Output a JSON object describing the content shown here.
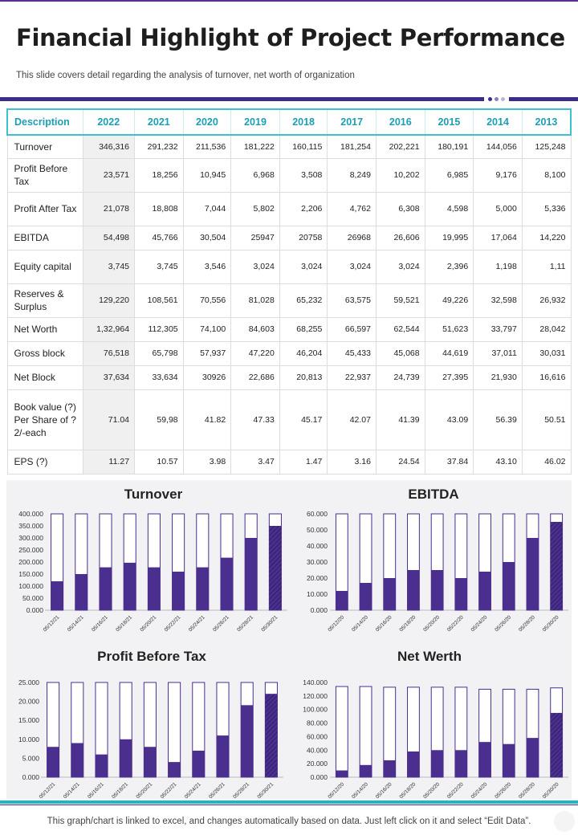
{
  "header": {
    "title": "Financial Highlight of Project Performance",
    "subtitle": "This slide covers detail regarding the analysis of turnover, net worth  of organization"
  },
  "table": {
    "columns": [
      "Description",
      "2022",
      "2021",
      "2020",
      "2019",
      "2018",
      "2017",
      "2016",
      "2015",
      "2014",
      "2013"
    ],
    "rows": [
      {
        "label": "Turnover",
        "values": [
          "346,316",
          "291,232",
          "211,536",
          "181,222",
          "160,115",
          "181,254",
          "202,221",
          "180,191",
          "144,056",
          "125,248"
        ]
      },
      {
        "label": "Profit Before Tax",
        "values": [
          "23,571",
          "18,256",
          "10,945",
          "6,968",
          "3,508",
          "8,249",
          "10,202",
          "6,985",
          "9,176",
          "8,100"
        ]
      },
      {
        "label": "Profit After Tax",
        "values": [
          "21,078",
          "18,808",
          "7,044",
          "5,802",
          "2,206",
          "4,762",
          "6,308",
          "4,598",
          "5,000",
          "5,336"
        ]
      },
      {
        "label": "EBITDA",
        "values": [
          "54,498",
          "45,766",
          "30,504",
          "25947",
          "20758",
          "26968",
          "26,606",
          "19,995",
          "17,064",
          "14,220"
        ]
      },
      {
        "label": "Equity capital",
        "values": [
          "3,745",
          "3,745",
          "3,546",
          "3,024",
          "3,024",
          "3,024",
          "3,024",
          "2,396",
          "1,198",
          "1,11"
        ]
      },
      {
        "label": "Reserves & Surplus",
        "values": [
          "129,220",
          "108,561",
          "70,556",
          "81,028",
          "65,232",
          "63,575",
          "59,521",
          "49,226",
          "32,598",
          "26,932"
        ]
      },
      {
        "label": "Net Worth",
        "values": [
          "1,32,964",
          "112,305",
          "74,100",
          "84,603",
          "68,255",
          "66,597",
          "62,544",
          "51,623",
          "33,797",
          "28,042"
        ]
      },
      {
        "label": "Gross block",
        "values": [
          "76,518",
          "65,798",
          "57,937",
          "47,220",
          "46,204",
          "45,433",
          "45,068",
          "44,619",
          "37,011",
          "30,031"
        ]
      },
      {
        "label": "Net Block",
        "values": [
          "37,634",
          "33,634",
          "30926",
          "22,686",
          "20,813",
          "22,937",
          "24,739",
          "27,395",
          "21,930",
          "16,616"
        ]
      },
      {
        "label": "Book value (?) Per Share of ? 2/-each",
        "values": [
          "71.04",
          "59,98",
          "41.82",
          "47.33",
          "45.17",
          "42.07",
          "41.39",
          "43.09",
          "56.39",
          "50.51"
        ]
      },
      {
        "label": "EPS (?)",
        "values": [
          "11.27",
          "10.57",
          "3.98",
          "3.47",
          "1.47",
          "3.16",
          "24.54",
          "37.84",
          "43.10",
          "46.02"
        ]
      }
    ]
  },
  "chart_data": [
    {
      "type": "bar",
      "title": "Turnover",
      "categories": [
        "05/12/21",
        "05/14/21",
        "05/16/21",
        "05/18/21",
        "05/20/21",
        "05/22/21",
        "05/24/21",
        "05/26/21",
        "05/28/21",
        "05/30/21"
      ],
      "values": [
        120000,
        150000,
        178000,
        197000,
        178000,
        160000,
        178000,
        218000,
        300000,
        350000
      ],
      "totals": [
        400000,
        400000,
        400000,
        400000,
        400000,
        400000,
        400000,
        400000,
        400000,
        400000
      ],
      "ylim": [
        0,
        400000
      ],
      "yticks": [
        "0.000",
        "50.000",
        "100.000",
        "150.000",
        "200.000",
        "250.000",
        "300.000",
        "350.000",
        "400.000"
      ],
      "grid": false
    },
    {
      "type": "bar",
      "title": "EBITDA",
      "categories": [
        "05/12/20",
        "05/14/20",
        "05/16/20",
        "05/18/20",
        "05/20/20",
        "05/22/20",
        "05/24/20",
        "05/26/20",
        "05/28/20",
        "05/30/20"
      ],
      "values": [
        12000,
        17000,
        20000,
        25000,
        25000,
        20000,
        24000,
        30000,
        45000,
        55000
      ],
      "totals": [
        60000,
        60000,
        60000,
        60000,
        60000,
        60000,
        60000,
        60000,
        60000,
        60000
      ],
      "ylim": [
        0,
        60000
      ],
      "yticks": [
        "0.000",
        "10.000",
        "20.000",
        "30.000",
        "40.000",
        "50.000",
        "60.000"
      ],
      "grid": false
    },
    {
      "type": "bar",
      "title": "Profit Before Tax",
      "categories": [
        "05/12/21",
        "05/14/21",
        "05/16/21",
        "05/18/21",
        "05/20/21",
        "05/22/21",
        "05/24/21",
        "05/26/21",
        "05/28/21",
        "05/30/21"
      ],
      "values": [
        8000,
        9000,
        6000,
        10000,
        8000,
        4000,
        7000,
        11000,
        19000,
        22000
      ],
      "totals": [
        25000,
        25000,
        25000,
        25000,
        25000,
        25000,
        25000,
        25000,
        25000,
        25000
      ],
      "ylim": [
        0,
        25000
      ],
      "yticks": [
        "0.000",
        "5.000",
        "10.000",
        "15.000",
        "20.000",
        "25.000"
      ],
      "grid": false
    },
    {
      "type": "bar",
      "title": "Net Werth",
      "categories": [
        "05/12/20",
        "05/14/20",
        "05/16/20",
        "05/18/20",
        "05/20/20",
        "05/22/20",
        "05/24/20",
        "05/26/20",
        "05/28/20",
        "05/30/20"
      ],
      "values": [
        10000,
        18000,
        25000,
        38000,
        40000,
        40000,
        52000,
        49000,
        58000,
        95000
      ],
      "totals": [
        134000,
        134000,
        133000,
        133000,
        133000,
        133000,
        130000,
        130000,
        130000,
        132000
      ],
      "ylim": [
        0,
        140000
      ],
      "yticks": [
        "0.000",
        "20.000",
        "40.000",
        "60.000",
        "80.000",
        "100.000",
        "120.000",
        "140.000"
      ],
      "grid": false
    }
  ],
  "colors": {
    "bar_fill": "#4a2f8f",
    "bar_outline": "#4a2f8f",
    "header_teal": "#1a9fb4",
    "accent_purple": "#3d2a8a"
  },
  "footer": {
    "note": "This graph/chart is linked to excel, and changes automatically based on data. Just left click on it and select “Edit Data”."
  }
}
